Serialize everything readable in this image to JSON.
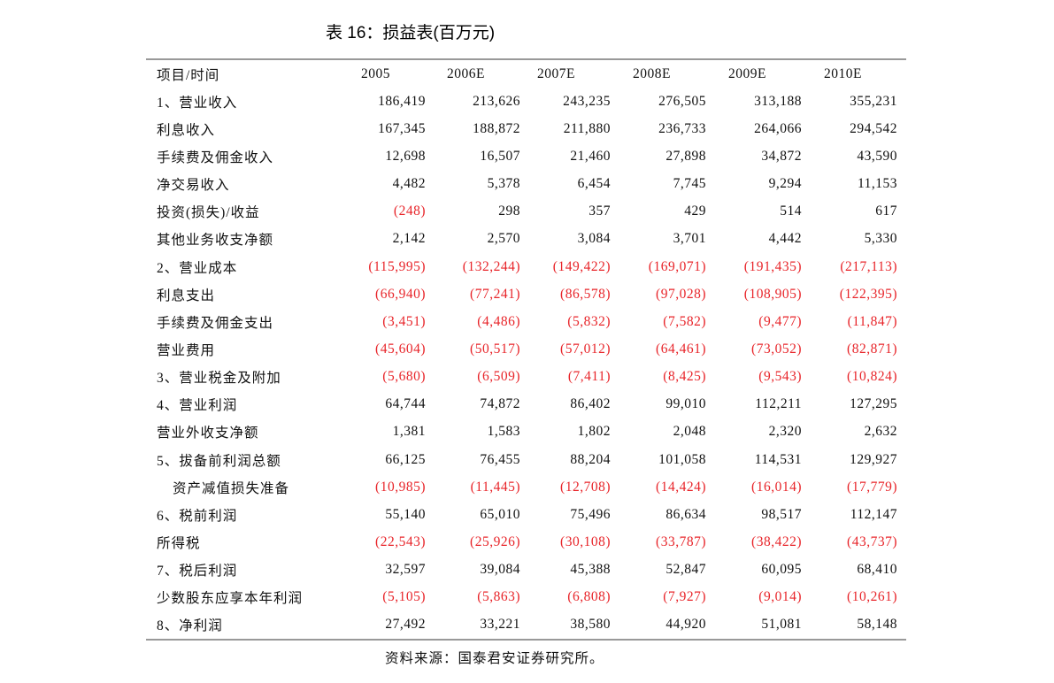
{
  "title": "表 16：损益表(百万元)",
  "table": {
    "headers": [
      "项目/时间",
      "2005",
      "2006E",
      "2007E",
      "2008E",
      "2009E",
      "2010E"
    ],
    "rows": [
      {
        "label": "1、营业收入",
        "values": [
          "186,419",
          "213,626",
          "243,235",
          "276,505",
          "313,188",
          "355,231"
        ]
      },
      {
        "label": "利息收入",
        "values": [
          "167,345",
          "188,872",
          "211,880",
          "236,733",
          "264,066",
          "294,542"
        ]
      },
      {
        "label": "手续费及佣金收入",
        "values": [
          "12,698",
          "16,507",
          "21,460",
          "27,898",
          "34,872",
          "43,590"
        ]
      },
      {
        "label": "净交易收入",
        "values": [
          "4,482",
          "5,378",
          "6,454",
          "7,745",
          "9,294",
          "11,153"
        ]
      },
      {
        "label": "投资(损失)/收益",
        "values": [
          "(248)",
          "298",
          "357",
          "429",
          "514",
          "617"
        ]
      },
      {
        "label": "其他业务收支净额",
        "values": [
          "2,142",
          "2,570",
          "3,084",
          "3,701",
          "4,442",
          "5,330"
        ]
      },
      {
        "label": "2、营业成本",
        "values": [
          "(115,995)",
          "(132,244)",
          "(149,422)",
          "(169,071)",
          "(191,435)",
          "(217,113)"
        ]
      },
      {
        "label": "利息支出",
        "values": [
          "(66,940)",
          "(77,241)",
          "(86,578)",
          "(97,028)",
          "(108,905)",
          "(122,395)"
        ]
      },
      {
        "label": "手续费及佣金支出",
        "values": [
          "(3,451)",
          "(4,486)",
          "(5,832)",
          "(7,582)",
          "(9,477)",
          "(11,847)"
        ]
      },
      {
        "label": "营业费用",
        "values": [
          "(45,604)",
          "(50,517)",
          "(57,012)",
          "(64,461)",
          "(73,052)",
          "(82,871)"
        ]
      },
      {
        "label": "3、营业税金及附加",
        "values": [
          "(5,680)",
          "(6,509)",
          "(7,411)",
          "(8,425)",
          "(9,543)",
          "(10,824)"
        ]
      },
      {
        "label": "4、营业利润",
        "values": [
          "64,744",
          "74,872",
          "86,402",
          "99,010",
          "112,211",
          "127,295"
        ]
      },
      {
        "label": "营业外收支净额",
        "values": [
          "1,381",
          "1,583",
          "1,802",
          "2,048",
          "2,320",
          "2,632"
        ]
      },
      {
        "label": "5、拔备前利润总额",
        "values": [
          "66,125",
          "76,455",
          "88,204",
          "101,058",
          "114,531",
          "129,927"
        ]
      },
      {
        "label": "资产减值损失准备",
        "indent": true,
        "values": [
          "(10,985)",
          "(11,445)",
          "(12,708)",
          "(14,424)",
          "(16,014)",
          "(17,779)"
        ]
      },
      {
        "label": "6、税前利润",
        "values": [
          "55,140",
          "65,010",
          "75,496",
          "86,634",
          "98,517",
          "112,147"
        ]
      },
      {
        "label": "所得税",
        "values": [
          "(22,543)",
          "(25,926)",
          "(30,108)",
          "(33,787)",
          "(38,422)",
          "(43,737)"
        ]
      },
      {
        "label": "7、税后利润",
        "values": [
          "32,597",
          "39,084",
          "45,388",
          "52,847",
          "60,095",
          "68,410"
        ]
      },
      {
        "label": "少数股东应享本年利润",
        "values": [
          "(5,105)",
          "(5,863)",
          "(6,808)",
          "(7,927)",
          "(9,014)",
          "(10,261)"
        ]
      },
      {
        "label": "8、净利润",
        "values": [
          "27,492",
          "33,221",
          "38,580",
          "44,920",
          "51,081",
          "58,148"
        ]
      }
    ]
  },
  "source": "资料来源：国泰君安证券研究所。",
  "colors": {
    "negative": "#e8252a",
    "text": "#111111",
    "rule": "#999999"
  }
}
